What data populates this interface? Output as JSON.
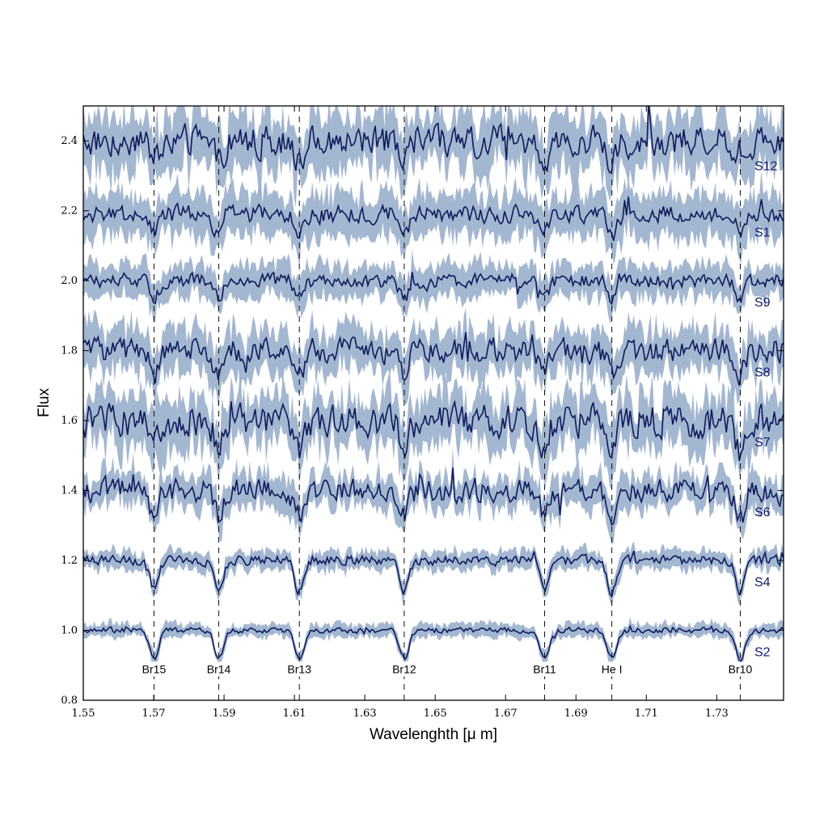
{
  "chart_data": {
    "type": "line",
    "xlabel": "Wavelenghth [μ m]",
    "ylabel": "Flux",
    "xlim": [
      1.55,
      1.749
    ],
    "ylim": [
      0.8,
      2.5
    ],
    "x_ticks": [
      "1.55",
      "1.57",
      "1.59",
      "1.61",
      "1.63",
      "1.65",
      "1.67",
      "1.69",
      "1.71",
      "1.73"
    ],
    "y_ticks": [
      "0.8",
      "1.0",
      "1.2",
      "1.4",
      "1.6",
      "1.8",
      "2.0",
      "2.2",
      "2.4"
    ],
    "grid": false,
    "colors": {
      "line": "#0f1a5c",
      "band": "#9aafcc",
      "label": "#101a6b",
      "frame": "#000000"
    },
    "spectral_lines": [
      {
        "label": "Br15",
        "wavelength": 1.5701
      },
      {
        "label": "Br14",
        "wavelength": 1.5885
      },
      {
        "label": "Br13",
        "wavelength": 1.6114
      },
      {
        "label": "Br12",
        "wavelength": 1.6412
      },
      {
        "label": "Br11",
        "wavelength": 1.6811
      },
      {
        "label": "He I",
        "wavelength": 1.7002
      },
      {
        "label": "Br10",
        "wavelength": 1.7367
      }
    ],
    "series": [
      {
        "name": "S12",
        "baseline": 2.4,
        "noise": 0.038,
        "err": 0.075,
        "depth": 0.06,
        "label_y": 2.33
      },
      {
        "name": "S1",
        "baseline": 2.19,
        "noise": 0.022,
        "err": 0.06,
        "depth": 0.06,
        "label_y": 2.14
      },
      {
        "name": "S9",
        "baseline": 2.0,
        "noise": 0.018,
        "err": 0.045,
        "depth": 0.05,
        "label_y": 1.94
      },
      {
        "name": "S8",
        "baseline": 1.8,
        "noise": 0.03,
        "err": 0.06,
        "depth": 0.07,
        "label_y": 1.74
      },
      {
        "name": "S7",
        "baseline": 1.6,
        "noise": 0.04,
        "err": 0.07,
        "depth": 0.08,
        "label_y": 1.54
      },
      {
        "name": "S6",
        "baseline": 1.4,
        "noise": 0.03,
        "err": 0.045,
        "depth": 0.08,
        "label_y": 1.34
      },
      {
        "name": "S4",
        "baseline": 1.2,
        "noise": 0.012,
        "err": 0.025,
        "depth": 0.09,
        "label_y": 1.14
      },
      {
        "name": "S2",
        "baseline": 1.0,
        "noise": 0.007,
        "err": 0.018,
        "depth": 0.08,
        "label_y": 0.94
      }
    ]
  }
}
